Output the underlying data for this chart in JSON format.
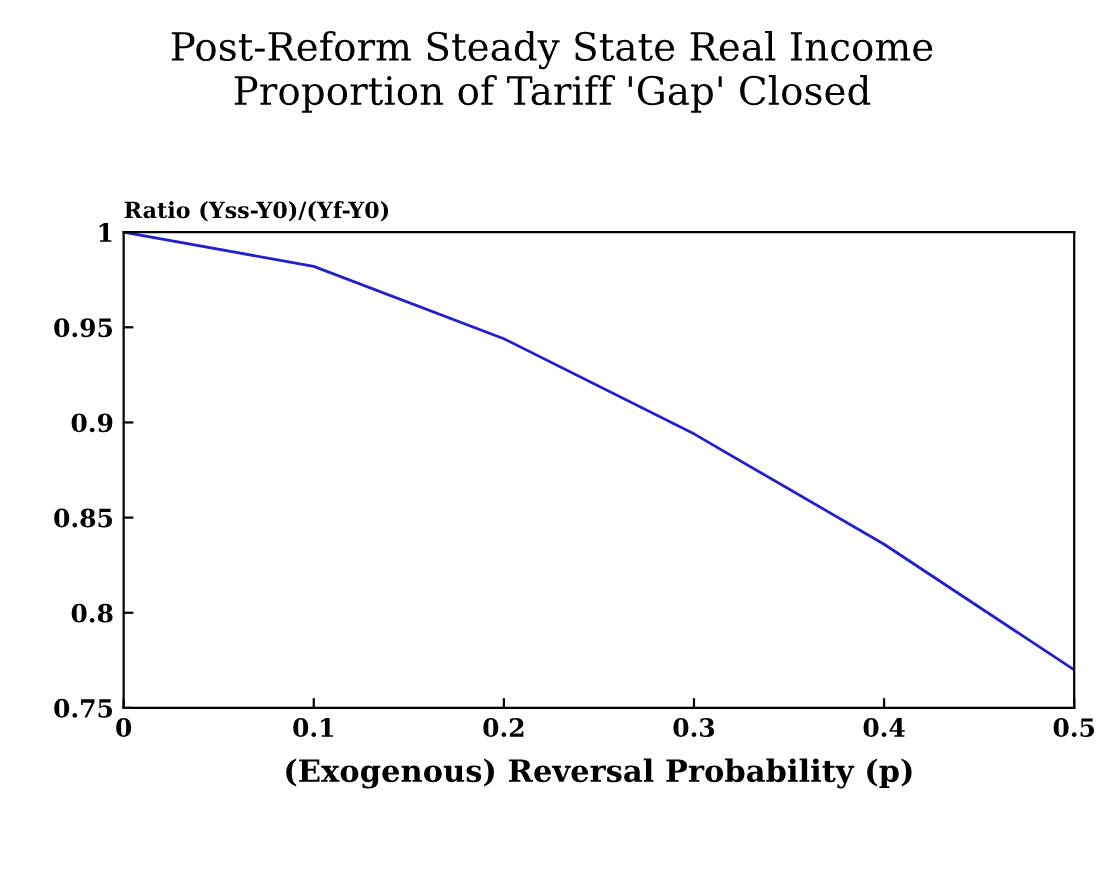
{
  "chart_data": {
    "type": "line",
    "title": "Post-Reform Steady State Real Income\nProportion of Tariff 'Gap' Closed",
    "xlabel": "(Exogenous) Reversal Probability (p)",
    "ylabel": "Ratio (Yss-Y0)/(Yf-Y0)",
    "x": [
      0,
      0.1,
      0.2,
      0.3,
      0.4,
      0.5
    ],
    "series": [
      {
        "color": "#2020d0",
        "values": [
          1,
          0.982,
          0.944,
          0.894,
          0.836,
          0.77
        ]
      }
    ],
    "xlim": [
      0,
      0.5
    ],
    "ylim": [
      0.75,
      1
    ],
    "xticks": [
      0,
      0.1,
      0.2,
      0.3,
      0.4,
      0.5
    ],
    "yticks": [
      0.75,
      0.8,
      0.85,
      0.9,
      0.95,
      1
    ],
    "grid": false,
    "legend": false
  }
}
